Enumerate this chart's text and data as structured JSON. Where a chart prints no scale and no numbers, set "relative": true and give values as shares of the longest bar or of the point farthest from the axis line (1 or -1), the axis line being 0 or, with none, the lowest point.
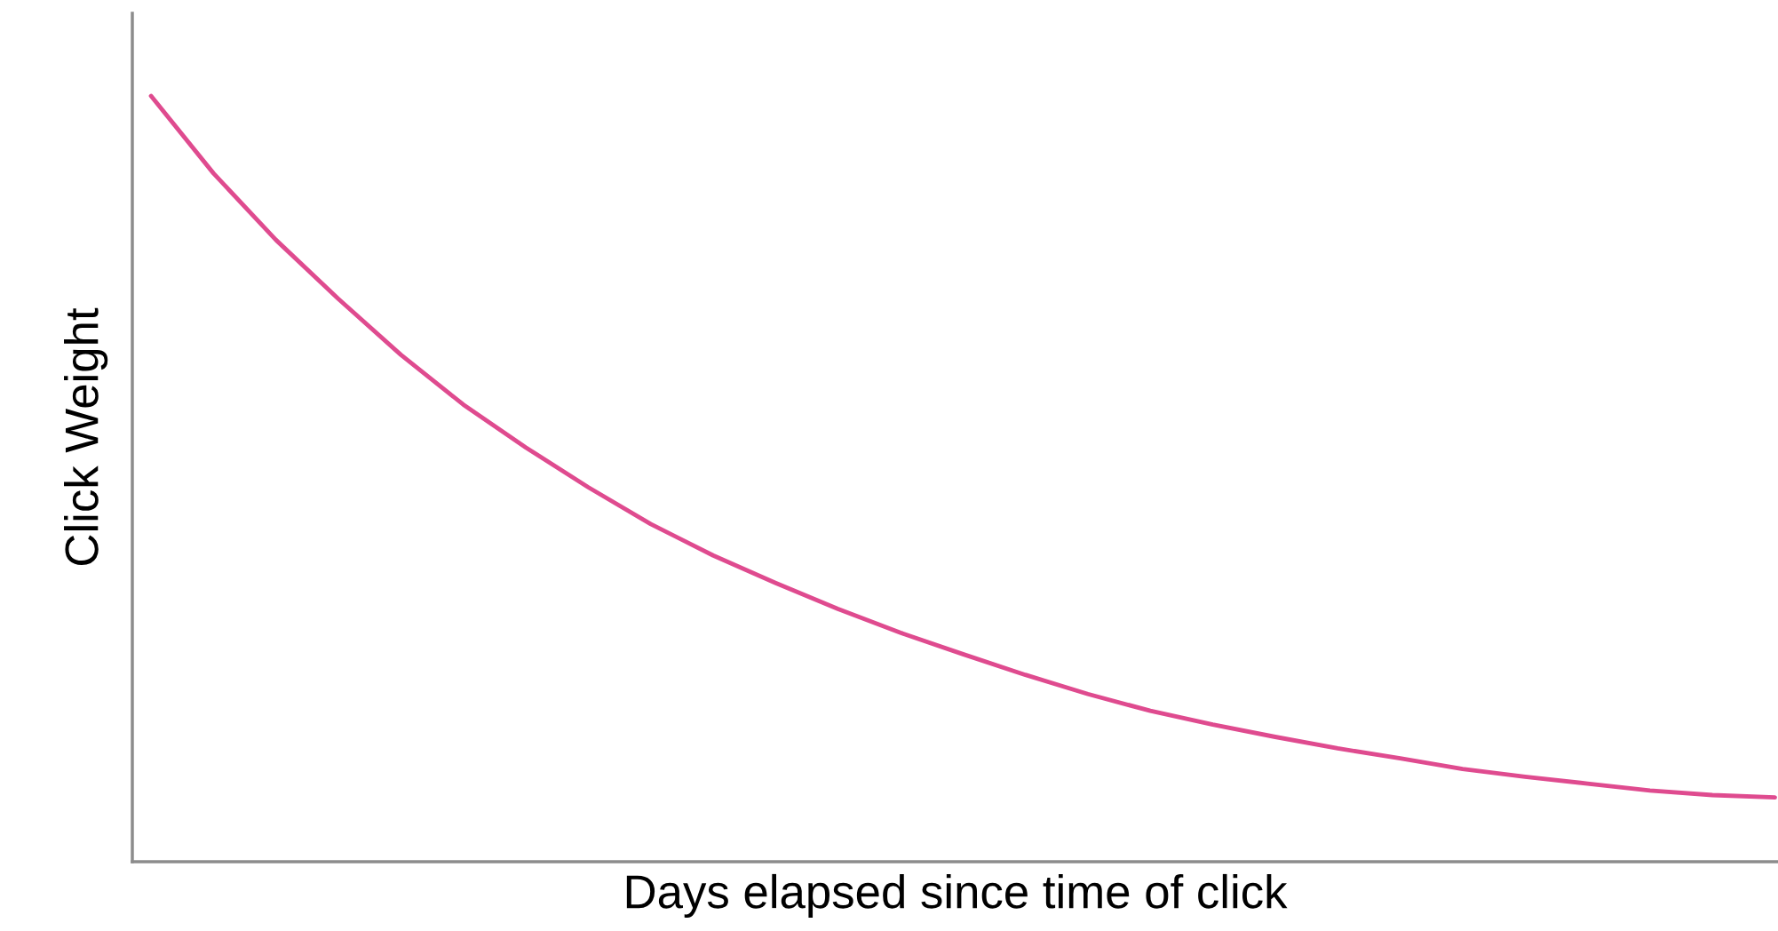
{
  "chart_data": {
    "type": "line",
    "relative": true,
    "xlabel": "Days elapsed since time of click",
    "ylabel": "Click Weight",
    "categories": [
      null,
      null,
      null,
      null,
      null,
      null,
      null,
      null,
      null,
      null,
      null,
      null,
      null,
      null,
      null,
      null,
      null,
      null,
      null,
      null,
      null,
      null,
      null,
      null,
      null,
      null,
      null
    ],
    "series": [
      {
        "color": "#df4b8f",
        "values": [
          1.0,
          0.899,
          0.812,
          0.735,
          0.662,
          0.597,
          0.541,
          0.489,
          0.441,
          0.4,
          0.364,
          0.33,
          0.299,
          0.271,
          0.244,
          0.219,
          0.197,
          0.179,
          0.163,
          0.148,
          0.135,
          0.121,
          0.111,
          0.102,
          0.093,
          0.087,
          0.084
        ]
      }
    ],
    "grid": false,
    "marker": "none",
    "line_style": "solid",
    "tick_labels": false
  }
}
